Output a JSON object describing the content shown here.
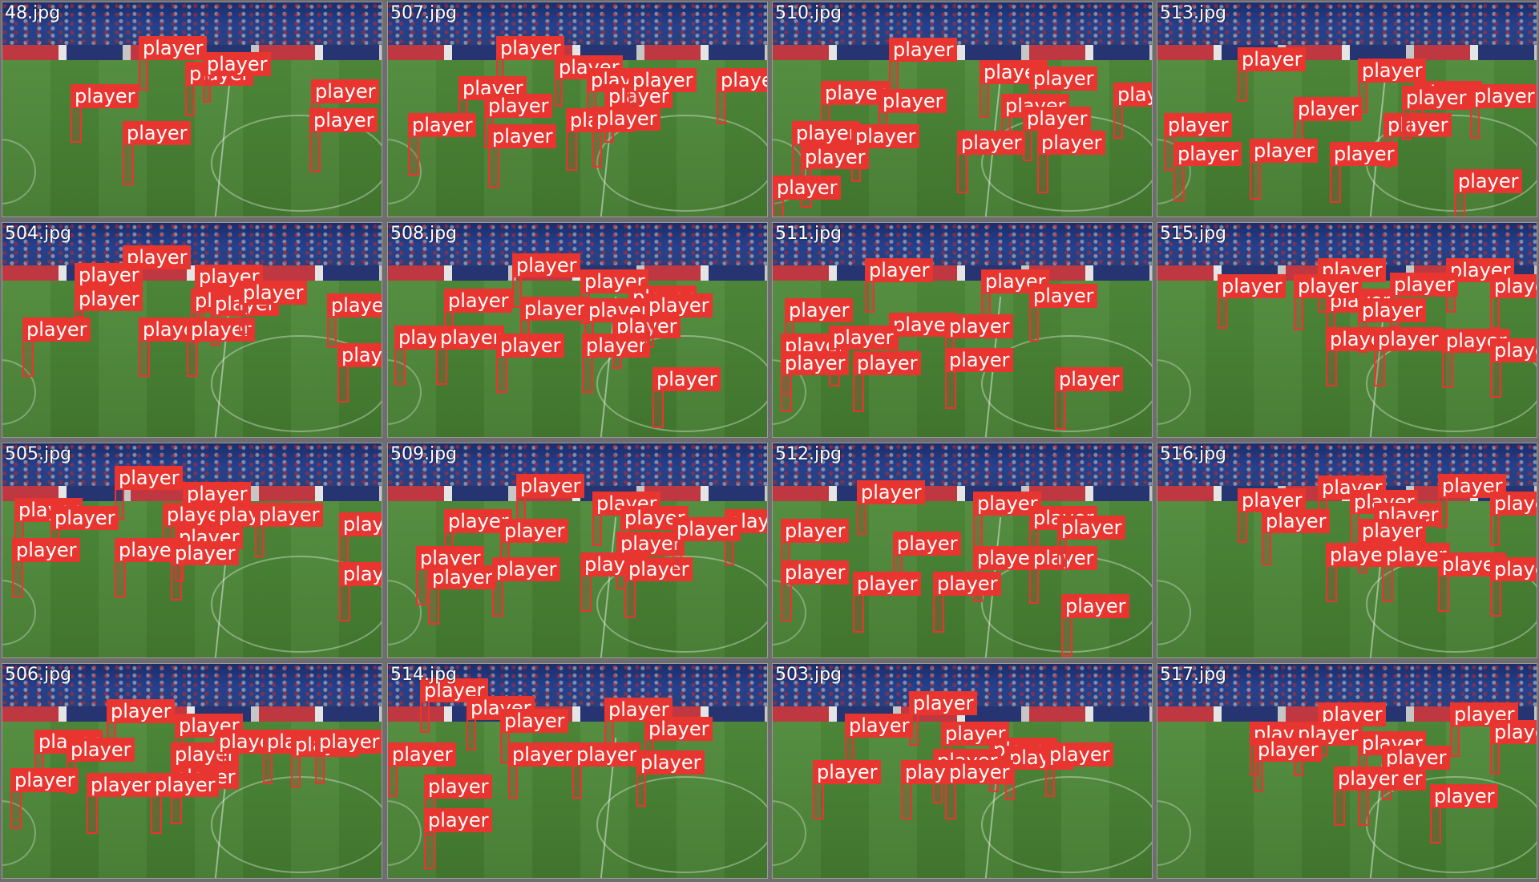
{
  "label_text": "player",
  "colors": {
    "box": "#e8352f",
    "label_text": "#ffffff",
    "background": "#6e6e6e",
    "pitch": "#4a8436",
    "stands": "#24418e"
  },
  "tiles": [
    {
      "name": "48.jpg",
      "players": 7
    },
    {
      "name": "507.jpg",
      "players": 12
    },
    {
      "name": "510.jpg",
      "players": 14
    },
    {
      "name": "513.jpg",
      "players": 12
    },
    {
      "name": "504.jpg",
      "players": 12
    },
    {
      "name": "508.jpg",
      "players": 13
    },
    {
      "name": "511.jpg",
      "players": 12
    },
    {
      "name": "515.jpg",
      "players": 12
    },
    {
      "name": "505.jpg",
      "players": 13
    },
    {
      "name": "509.jpg",
      "players": 13
    },
    {
      "name": "512.jpg",
      "players": 12
    },
    {
      "name": "516.jpg",
      "players": 12
    },
    {
      "name": "506.jpg",
      "players": 13
    },
    {
      "name": "514.jpg",
      "players": 11
    },
    {
      "name": "503.jpg",
      "players": 10
    },
    {
      "name": "517.jpg",
      "players": 11
    }
  ]
}
